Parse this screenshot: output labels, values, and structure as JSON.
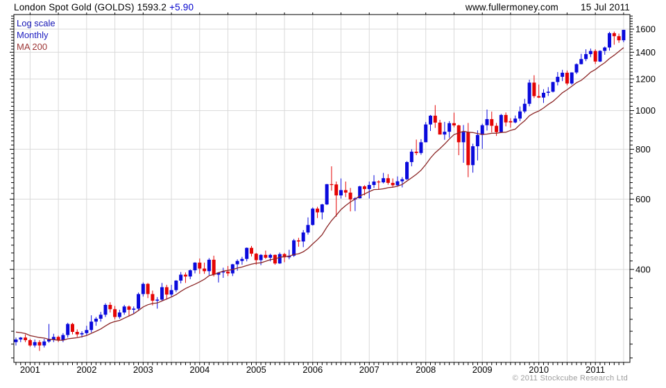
{
  "header": {
    "title": "London Spot Gold (GOLDS)",
    "price": "1593.2",
    "change": "+5.90",
    "site": "www.fullermoney.com",
    "date": "15 Jul 2011"
  },
  "legend": {
    "scale_label": "Log scale",
    "interval_label": "Monthly",
    "ma_label": "MA 200"
  },
  "footer": {
    "copyright": "© 2011 Stockcube Research Ltd"
  },
  "chart_data": {
    "type": "candlestick",
    "title": "London Spot Gold (GOLDS)",
    "subtitle": "Monthly, log scale, 200-period moving average overlay",
    "scale": "log",
    "interval": "Monthly",
    "overlay": "MA 200",
    "start_month": "2000-10",
    "end_month": "2011-07",
    "x_labels": [
      "2001",
      "2002",
      "2003",
      "2004",
      "2005",
      "2006",
      "2007",
      "2008",
      "2009",
      "2010",
      "2011"
    ],
    "y_ticks": [
      400,
      600,
      800,
      1000,
      1200,
      1400,
      1600
    ],
    "ylim": [
      234,
      1740
    ],
    "grid": true,
    "colors": {
      "up": "#0a0adc",
      "down": "#e40404",
      "ma": "#8b2525",
      "grid": "#d9d9d9",
      "axis": "#000000"
    },
    "ohlc": [
      [
        263,
        270,
        258,
        267
      ],
      [
        267,
        271,
        263,
        270
      ],
      [
        270,
        275,
        263,
        266
      ],
      [
        266,
        268,
        256,
        258
      ],
      [
        258,
        267,
        255,
        263
      ],
      [
        263,
        266,
        250,
        258
      ],
      [
        258,
        268,
        255,
        264
      ],
      [
        264,
        292,
        262,
        267
      ],
      [
        267,
        276,
        263,
        271
      ],
      [
        271,
        273,
        263,
        266
      ],
      [
        266,
        277,
        263,
        274
      ],
      [
        274,
        294,
        270,
        292
      ],
      [
        292,
        294,
        275,
        279
      ],
      [
        279,
        283,
        271,
        275
      ],
      [
        275,
        280,
        270,
        277
      ],
      [
        277,
        289,
        273,
        282
      ],
      [
        282,
        307,
        278,
        296
      ],
      [
        296,
        304,
        289,
        301
      ],
      [
        301,
        313,
        296,
        308
      ],
      [
        308,
        329,
        304,
        326
      ],
      [
        326,
        331,
        312,
        318
      ],
      [
        318,
        324,
        300,
        304
      ],
      [
        304,
        317,
        301,
        312
      ],
      [
        312,
        326,
        308,
        323
      ],
      [
        323,
        325,
        305,
        317
      ],
      [
        317,
        323,
        310,
        319
      ],
      [
        319,
        350,
        315,
        347
      ],
      [
        347,
        371,
        342,
        368
      ],
      [
        368,
        370,
        339,
        347
      ],
      [
        347,
        354,
        325,
        334
      ],
      [
        334,
        341,
        319,
        336
      ],
      [
        336,
        370,
        333,
        361
      ],
      [
        361,
        366,
        336,
        346
      ],
      [
        346,
        366,
        342,
        355
      ],
      [
        355,
        376,
        351,
        375
      ],
      [
        375,
        394,
        369,
        388
      ],
      [
        388,
        393,
        370,
        384
      ],
      [
        384,
        400,
        378,
        398
      ],
      [
        398,
        417,
        391,
        416
      ],
      [
        416,
        426,
        390,
        402
      ],
      [
        402,
        416,
        390,
        396
      ],
      [
        396,
        427,
        387,
        423
      ],
      [
        423,
        433,
        384,
        388
      ],
      [
        388,
        394,
        371,
        393
      ],
      [
        393,
        404,
        381,
        395
      ],
      [
        395,
        408,
        385,
        391
      ],
      [
        391,
        413,
        385,
        412
      ],
      [
        412,
        424,
        397,
        420
      ],
      [
        420,
        430,
        411,
        425
      ],
      [
        425,
        454,
        419,
        453
      ],
      [
        453,
        458,
        431,
        438
      ],
      [
        438,
        440,
        411,
        422
      ],
      [
        422,
        437,
        410,
        435
      ],
      [
        435,
        446,
        425,
        428
      ],
      [
        428,
        438,
        419,
        435
      ],
      [
        435,
        436,
        411,
        414
      ],
      [
        414,
        441,
        413,
        437
      ],
      [
        437,
        440,
        417,
        429
      ],
      [
        429,
        448,
        424,
        433
      ],
      [
        433,
        477,
        430,
        473
      ],
      [
        473,
        480,
        456,
        470
      ],
      [
        470,
        502,
        455,
        495
      ],
      [
        495,
        540,
        489,
        517
      ],
      [
        517,
        572,
        515,
        568
      ],
      [
        568,
        574,
        538,
        556
      ],
      [
        556,
        584,
        534,
        582
      ],
      [
        582,
        655,
        580,
        654
      ],
      [
        654,
        725,
        630,
        653
      ],
      [
        653,
        664,
        542,
        613
      ],
      [
        613,
        676,
        602,
        632
      ],
      [
        632,
        664,
        607,
        623
      ],
      [
        623,
        640,
        559,
        599
      ],
      [
        599,
        607,
        560,
        603
      ],
      [
        603,
        648,
        602,
        646
      ],
      [
        646,
        650,
        613,
        636
      ],
      [
        636,
        664,
        602,
        651
      ],
      [
        651,
        689,
        640,
        664
      ],
      [
        664,
        669,
        634,
        661
      ],
      [
        661,
        698,
        657,
        677
      ],
      [
        677,
        693,
        652,
        659
      ],
      [
        659,
        676,
        642,
        650
      ],
      [
        650,
        684,
        645,
        665
      ],
      [
        665,
        681,
        642,
        673
      ],
      [
        673,
        747,
        670,
        743
      ],
      [
        743,
        800,
        725,
        789
      ],
      [
        789,
        846,
        773,
        783
      ],
      [
        783,
        848,
        775,
        833
      ],
      [
        833,
        936,
        833,
        923
      ],
      [
        923,
        975,
        889,
        971
      ],
      [
        971,
        1032,
        905,
        933
      ],
      [
        933,
        948,
        871,
        871
      ],
      [
        871,
        937,
        845,
        885
      ],
      [
        885,
        941,
        855,
        930
      ],
      [
        930,
        988,
        908,
        918
      ],
      [
        918,
        922,
        773,
        833
      ],
      [
        833,
        920,
        740,
        884
      ],
      [
        884,
        931,
        681,
        730
      ],
      [
        730,
        826,
        699,
        814
      ],
      [
        814,
        892,
        750,
        869
      ],
      [
        869,
        927,
        802,
        919
      ],
      [
        919,
        1006,
        891,
        952
      ],
      [
        952,
        994,
        882,
        916
      ],
      [
        916,
        931,
        864,
        883
      ],
      [
        883,
        981,
        879,
        975
      ],
      [
        975,
        989,
        913,
        934
      ],
      [
        941,
        957,
        906,
        934
      ],
      [
        934,
        972,
        929,
        955
      ],
      [
        955,
        1024,
        941,
        995
      ],
      [
        995,
        1070,
        985,
        1040
      ],
      [
        1040,
        1195,
        1025,
        1175
      ],
      [
        1175,
        1226,
        1075,
        1087
      ],
      [
        1087,
        1162,
        1075,
        1078
      ],
      [
        1078,
        1131,
        1045,
        1108
      ],
      [
        1108,
        1145,
        1088,
        1115
      ],
      [
        1115,
        1181,
        1110,
        1179
      ],
      [
        1179,
        1249,
        1156,
        1215
      ],
      [
        1215,
        1265,
        1185,
        1244
      ],
      [
        1244,
        1260,
        1157,
        1169
      ],
      [
        1169,
        1247,
        1160,
        1246
      ],
      [
        1246,
        1313,
        1235,
        1307
      ],
      [
        1307,
        1387,
        1305,
        1346
      ],
      [
        1346,
        1424,
        1330,
        1385
      ],
      [
        1385,
        1430,
        1361,
        1410
      ],
      [
        1410,
        1424,
        1308,
        1327
      ],
      [
        1327,
        1416,
        1323,
        1411
      ],
      [
        1411,
        1447,
        1380,
        1439
      ],
      [
        1439,
        1575,
        1413,
        1563
      ],
      [
        1563,
        1577,
        1462,
        1536
      ],
      [
        1536,
        1559,
        1478,
        1500
      ],
      [
        1500,
        1594,
        1483,
        1593
      ]
    ],
    "ma_seed": [
      283,
      294,
      279,
      275,
      272,
      289,
      276,
      277,
      274
    ],
    "ma_window": 11,
    "last_close": 1593.2,
    "last_change": 5.9
  }
}
